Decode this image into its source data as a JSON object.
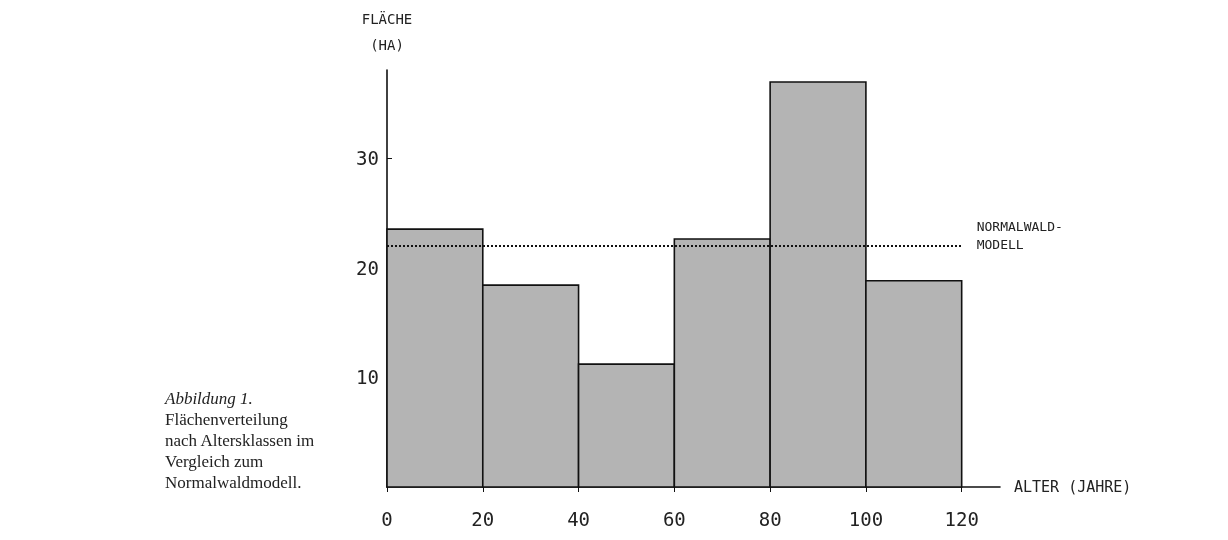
{
  "chart_data": {
    "type": "histogram",
    "xlabel": "ALTER (JAHRE)",
    "ylabel": "FLÄCHE (HA)",
    "bins": [
      0,
      20,
      40,
      60,
      80,
      100,
      120
    ],
    "values": [
      23.5,
      18.4,
      11.2,
      22.6,
      36.9,
      18.8
    ],
    "color": "#b4b4b4",
    "xlim": [
      0,
      128
    ],
    "xticks": [
      0,
      20,
      40,
      60,
      80,
      100,
      120
    ],
    "ylim": [
      0,
      38
    ],
    "yticks": [
      10,
      20,
      30
    ],
    "ref_lines": [
      {
        "axis": "y",
        "value": 22,
        "label": "NORMALWALD-MODELL",
        "line_style": "dotted"
      }
    ],
    "grid": false,
    "annotations": [
      "Abbildung 1.",
      "Flächenverteilung nach Altersklassen im Vergleich zum Normalwaldmodell."
    ]
  }
}
